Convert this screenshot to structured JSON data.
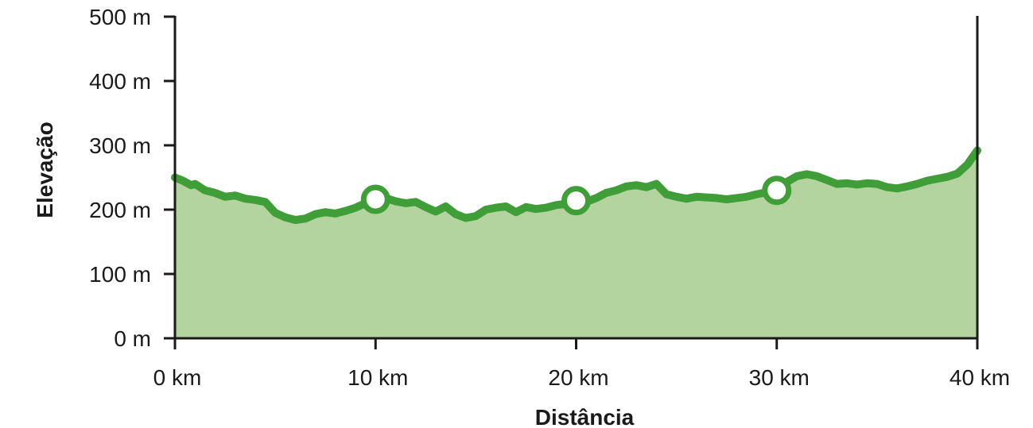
{
  "chart_data": {
    "type": "area",
    "xlabel": "Distância",
    "ylabel": "Elevação",
    "xlim": [
      0,
      40
    ],
    "ylim": [
      0,
      500
    ],
    "x_ticks": [
      {
        "value": 0,
        "label": "0 km"
      },
      {
        "value": 10,
        "label": "10 km"
      },
      {
        "value": 20,
        "label": "20 km"
      },
      {
        "value": 30,
        "label": "30 km"
      },
      {
        "value": 40,
        "label": "40 km"
      }
    ],
    "y_ticks": [
      {
        "value": 0,
        "label": "0 m"
      },
      {
        "value": 100,
        "label": "100 m"
      },
      {
        "value": 200,
        "label": "200 m"
      },
      {
        "value": 300,
        "label": "300 m"
      },
      {
        "value": 400,
        "label": "400 m"
      },
      {
        "value": 500,
        "label": "500 m"
      }
    ],
    "series": [
      {
        "x": [
          0,
          0.4,
          0.8,
          1.0,
          1.5,
          2.0,
          2.5,
          3.0,
          3.5,
          4.0,
          4.5,
          5.0,
          5.5,
          6.0,
          6.5,
          7.0,
          7.5,
          8.0,
          8.5,
          9.0,
          9.5,
          10.0,
          10.5,
          11.0,
          11.5,
          12.0,
          12.5,
          13.0,
          13.5,
          14.0,
          14.5,
          15.0,
          15.5,
          16.0,
          16.5,
          17.0,
          17.5,
          18.0,
          18.5,
          19.0,
          19.5,
          20.0,
          20.5,
          21.0,
          21.5,
          22.0,
          22.5,
          23.0,
          23.5,
          24.0,
          24.5,
          25.0,
          25.5,
          26.0,
          26.5,
          27.0,
          27.5,
          28.0,
          28.5,
          29.0,
          29.5,
          30.0,
          30.5,
          31.0,
          31.5,
          32.0,
          32.5,
          33.0,
          33.5,
          34.0,
          34.5,
          35.0,
          35.5,
          36.0,
          36.5,
          37.0,
          37.5,
          38.0,
          38.5,
          39.0,
          39.5,
          40.0
        ],
        "y": [
          250,
          245,
          238,
          240,
          230,
          226,
          220,
          222,
          217,
          215,
          212,
          195,
          188,
          184,
          186,
          193,
          196,
          194,
          198,
          203,
          210,
          216,
          218,
          213,
          210,
          212,
          204,
          197,
          205,
          193,
          187,
          190,
          200,
          203,
          205,
          196,
          204,
          201,
          203,
          207,
          209,
          214,
          212,
          218,
          226,
          230,
          236,
          238,
          235,
          240,
          224,
          220,
          217,
          220,
          219,
          218,
          216,
          218,
          220,
          224,
          227,
          230,
          243,
          252,
          255,
          252,
          246,
          240,
          241,
          239,
          241,
          240,
          235,
          233,
          236,
          240,
          245,
          248,
          251,
          256,
          270,
          292
        ]
      }
    ],
    "markers": [
      {
        "x": 10,
        "y": 216
      },
      {
        "x": 20,
        "y": 214
      },
      {
        "x": 30,
        "y": 230
      }
    ],
    "colors": {
      "line": "#3f9e37",
      "fill": "#b3d49e",
      "axis": "#1a1a1a",
      "marker_fill": "#ffffff"
    },
    "grid": false,
    "legend": "none"
  }
}
